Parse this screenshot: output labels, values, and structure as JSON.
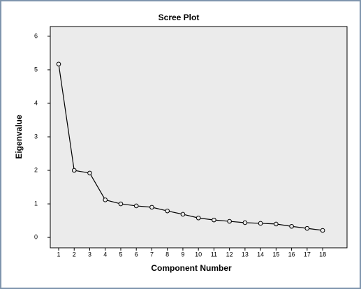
{
  "chart_data": {
    "type": "line",
    "title": "Scree Plot",
    "x_label": "Component Number",
    "y_label": "Eigenvalue",
    "x": [
      1,
      2,
      3,
      4,
      5,
      6,
      7,
      8,
      9,
      10,
      11,
      12,
      13,
      14,
      15,
      16,
      17,
      18
    ],
    "values": [
      5.17,
      2.0,
      1.92,
      1.12,
      1.0,
      0.94,
      0.9,
      0.79,
      0.69,
      0.58,
      0.52,
      0.48,
      0.44,
      0.42,
      0.4,
      0.33,
      0.27,
      0.21
    ],
    "color": "#000000",
    "plot_background": "#ebebeb",
    "xlim": [
      0.46,
      19.57
    ],
    "xticks": [
      1,
      2,
      3,
      4,
      5,
      6,
      7,
      8,
      9,
      10,
      11,
      12,
      13,
      14,
      15,
      16,
      17,
      18
    ],
    "ylim": [
      -0.31,
      6.29
    ],
    "yticks": [
      0,
      1,
      2,
      3,
      4,
      5,
      6
    ],
    "grid": false
  }
}
